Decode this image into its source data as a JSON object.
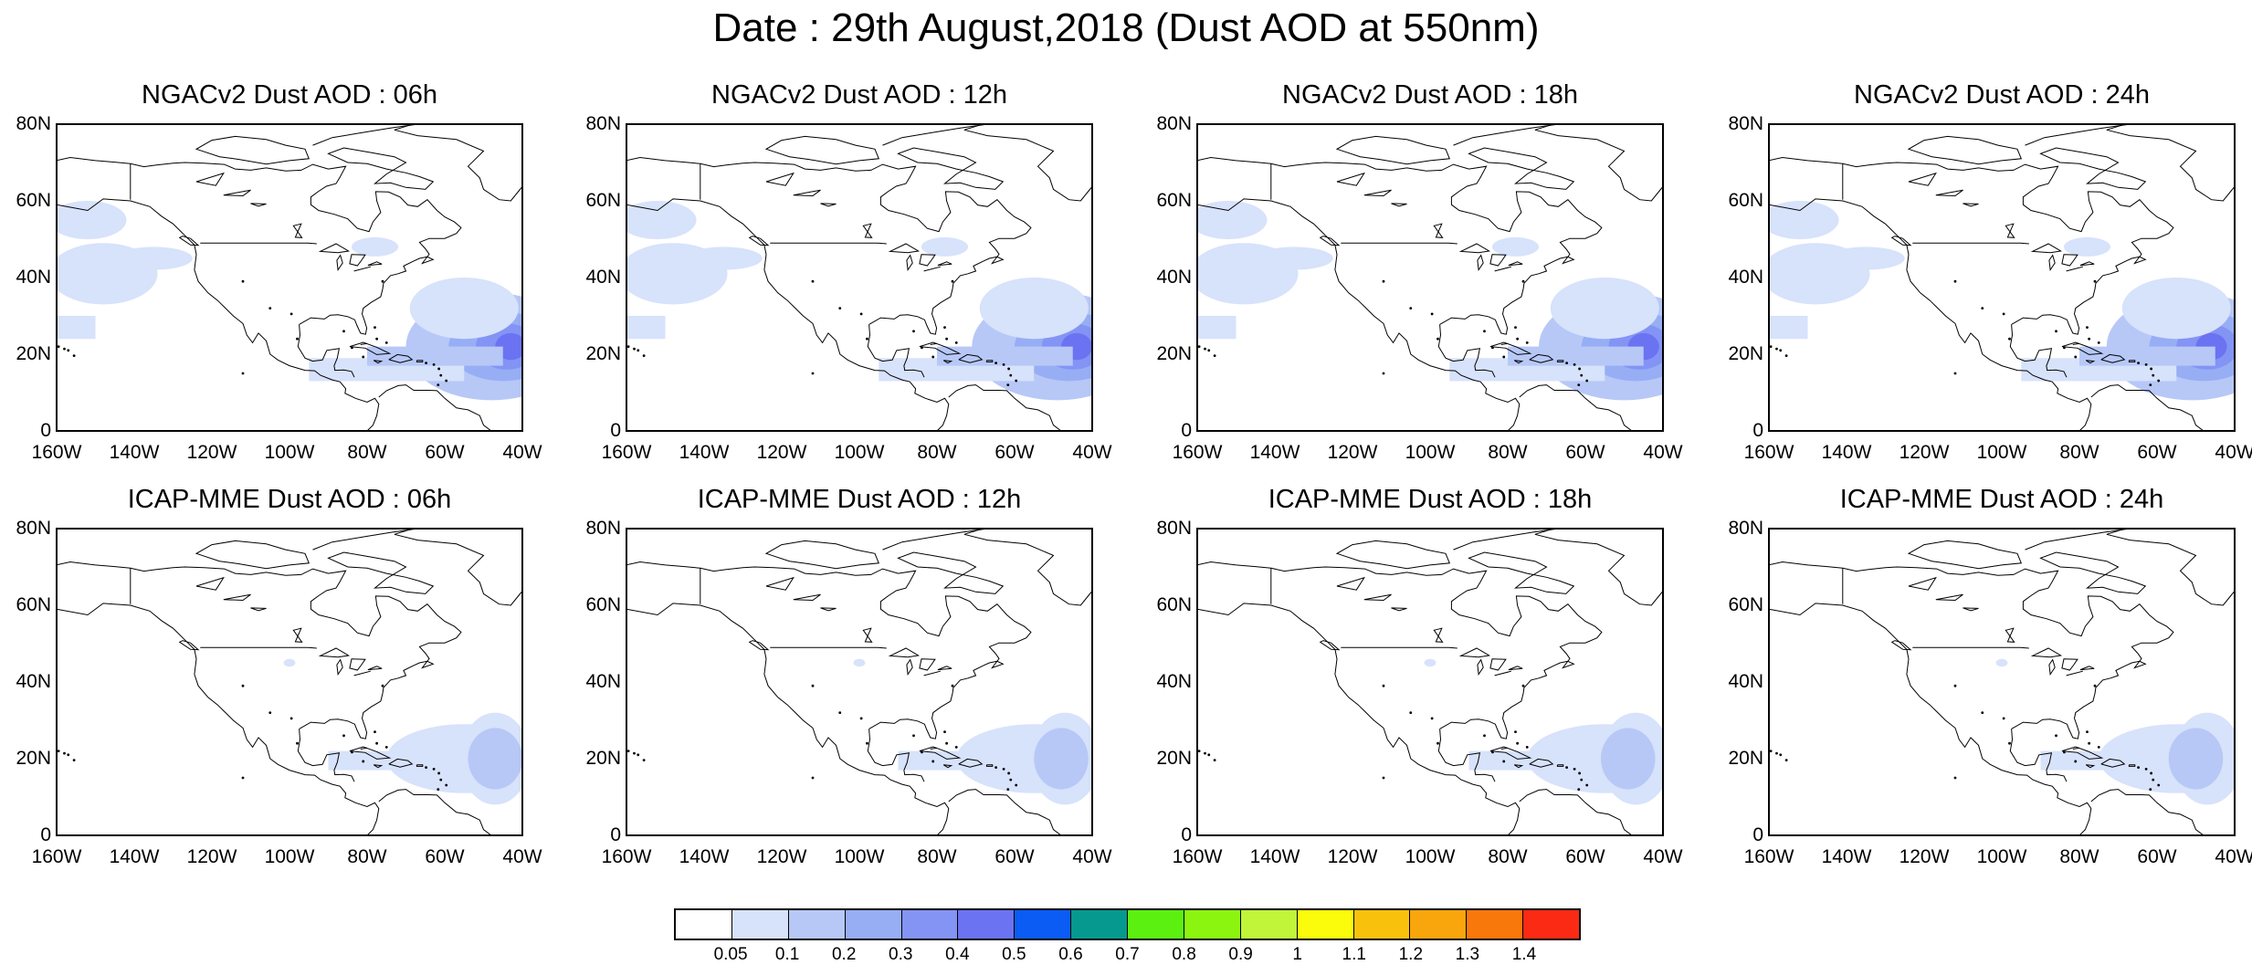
{
  "title": "Date : 29th August,2018 (Dust AOD at 550nm)",
  "panels": [
    {
      "title": "NGACv2 Dust AOD : 06h",
      "model": "NGAC",
      "hour": 6
    },
    {
      "title": "NGACv2 Dust AOD : 12h",
      "model": "NGAC",
      "hour": 12
    },
    {
      "title": "NGACv2 Dust AOD : 18h",
      "model": "NGAC",
      "hour": 18
    },
    {
      "title": "NGACv2 Dust AOD : 24h",
      "model": "NGAC",
      "hour": 24
    },
    {
      "title": "ICAP-MME Dust AOD : 06h",
      "model": "ICAP",
      "hour": 6
    },
    {
      "title": "ICAP-MME Dust AOD : 12h",
      "model": "ICAP",
      "hour": 12
    },
    {
      "title": "ICAP-MME Dust AOD : 18h",
      "model": "ICAP",
      "hour": 18
    },
    {
      "title": "ICAP-MME Dust AOD : 24h",
      "model": "ICAP",
      "hour": 24
    }
  ],
  "map_extent": {
    "lon_min": -160,
    "lon_max": -40,
    "lat_min": 0,
    "lat_max": 80
  },
  "lat_ticks": [
    {
      "value": 80,
      "label": "80N"
    },
    {
      "value": 60,
      "label": "60N"
    },
    {
      "value": 40,
      "label": "40N"
    },
    {
      "value": 20,
      "label": "20N"
    },
    {
      "value": 0,
      "label": "0"
    }
  ],
  "lon_ticks": [
    {
      "value": -160,
      "label": "160W"
    },
    {
      "value": -140,
      "label": "140W"
    },
    {
      "value": -120,
      "label": "120W"
    },
    {
      "value": -100,
      "label": "100W"
    },
    {
      "value": -80,
      "label": "80W"
    },
    {
      "value": -60,
      "label": "60W"
    },
    {
      "value": -40,
      "label": "40W"
    }
  ],
  "colorbar": {
    "colors": [
      "#ffffff",
      "#d7e2fb",
      "#b7c8f7",
      "#97aef5",
      "#8394f5",
      "#6b73f2",
      "#0a5cf5",
      "#06998f",
      "#5cf010",
      "#8cf510",
      "#c0f53a",
      "#fbfb0c",
      "#f8c20c",
      "#f8a60c",
      "#f8780c",
      "#fb2a14"
    ],
    "labels": [
      "0.05",
      "0.1",
      "0.2",
      "0.3",
      "0.4",
      "0.5",
      "0.6",
      "0.7",
      "0.8",
      "0.9",
      "1",
      "1.1",
      "1.2",
      "1.3",
      "1.4"
    ]
  }
}
